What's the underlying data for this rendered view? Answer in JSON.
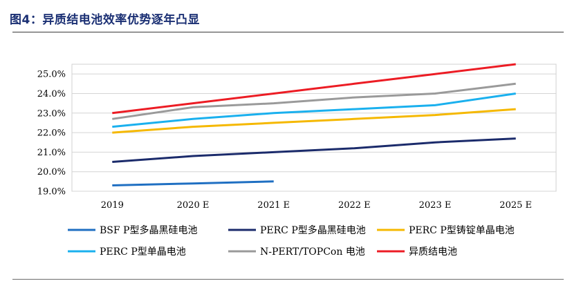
{
  "figure": {
    "title": "图4：异质结电池效率优势逐年凸显"
  },
  "chart_data": {
    "type": "line",
    "title": "图4：异质结电池效率优势逐年凸显",
    "xlabel": "",
    "ylabel": "",
    "categories": [
      "2019",
      "2020 E",
      "2021 E",
      "2022 E",
      "2023 E",
      "2025 E"
    ],
    "ylim": [
      0.19,
      0.255
    ],
    "yticks": [
      "19.0%",
      "20.0%",
      "21.0%",
      "22.0%",
      "23.0%",
      "24.0%",
      "25.0%"
    ],
    "ytick_values": [
      0.19,
      0.2,
      0.21,
      0.22,
      0.23,
      0.24,
      0.25
    ],
    "grid": true,
    "legend_position": "bottom",
    "series": [
      {
        "name": "BSF P型多晶黑硅电池",
        "color": "#1f6fc2",
        "values": [
          0.193,
          0.194,
          0.195,
          null,
          null,
          null
        ]
      },
      {
        "name": "PERC P型多晶黑硅电池",
        "color": "#1b2b6b",
        "values": [
          0.205,
          0.208,
          0.21,
          0.212,
          0.215,
          0.217
        ]
      },
      {
        "name": "PERC P型铸锭单晶电池",
        "color": "#f5b800",
        "values": [
          0.22,
          0.223,
          0.225,
          0.227,
          0.229,
          0.232
        ]
      },
      {
        "name": "PERC P型单晶电池",
        "color": "#1ab0ee",
        "values": [
          0.223,
          0.227,
          0.23,
          0.232,
          0.234,
          0.24
        ]
      },
      {
        "name": "N-PERT/TOPCon 电池",
        "color": "#9a9a9a",
        "values": [
          0.227,
          0.233,
          0.235,
          0.238,
          0.24,
          0.245
        ]
      },
      {
        "name": "异质结电池",
        "color": "#ec1c24",
        "values": [
          0.23,
          0.235,
          0.24,
          0.245,
          0.25,
          0.255
        ]
      }
    ]
  }
}
